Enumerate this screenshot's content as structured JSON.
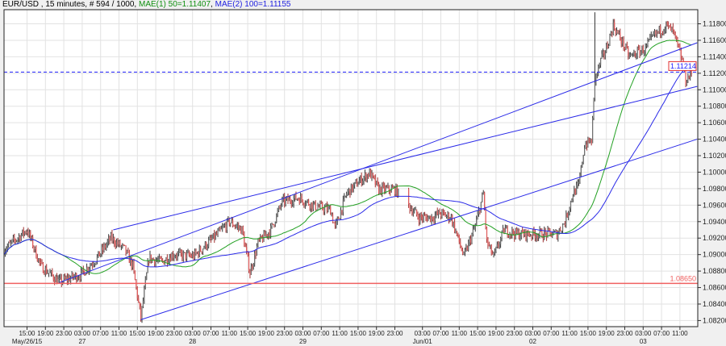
{
  "header": {
    "symbol": "EUR/USD",
    "info": " , 15 minutes, # 594 / 1000,",
    "ma1": "MAE(1) 50=1.11407",
    "ma2": "MAE(2) 100=1.11155"
  },
  "colors": {
    "ma1": "#22a022",
    "ma2": "#2a2ae8",
    "trendline": "#2a2ae8",
    "support": "#f06060",
    "current": "#2020ff",
    "candle_up": "#707070",
    "candle_down": "#e05a5a",
    "grid": "#e2e2e2"
  },
  "chart_data": {
    "type": "candlestick",
    "ylim": [
      1.0815,
      1.1205
    ],
    "y_ticks": [
      "1.11800",
      "1.11600",
      "1.11400",
      "1.11200",
      "1.11000",
      "1.10800",
      "1.10600",
      "1.10400",
      "1.10200",
      "1.10000",
      "1.09800",
      "1.09600",
      "1.09400",
      "1.09200",
      "1.09000",
      "1.08800",
      "1.08600",
      "1.08400",
      "1.08200"
    ],
    "x_ticks": [
      {
        "t": "05/26 15:00",
        "label": "15:00"
      },
      {
        "t": "05/26 19:00",
        "label": "19:00"
      },
      {
        "t": "05/26 23:00",
        "label": "23:00"
      },
      {
        "t": "05/27 03:00",
        "label": "03:00"
      },
      {
        "t": "05/27 07:00",
        "label": "07:00"
      },
      {
        "t": "05/27 11:00",
        "label": "11:00"
      },
      {
        "t": "05/27 15:00",
        "label": "15:00"
      },
      {
        "t": "05/27 19:00",
        "label": "19:00"
      },
      {
        "t": "05/27 23:00",
        "label": "23:00"
      },
      {
        "t": "05/28 03:00",
        "label": "03:00"
      },
      {
        "t": "05/28 07:00",
        "label": "07:00"
      },
      {
        "t": "05/28 11:00",
        "label": "11:00"
      },
      {
        "t": "05/28 15:00",
        "label": "15:00"
      },
      {
        "t": "05/28 19:00",
        "label": "19:00"
      },
      {
        "t": "05/28 23:00",
        "label": "23:00"
      },
      {
        "t": "05/29 03:00",
        "label": "03:00"
      },
      {
        "t": "05/29 07:00",
        "label": "07:00"
      },
      {
        "t": "05/29 11:00",
        "label": "11:00"
      },
      {
        "t": "05/29 15:00",
        "label": "15:00"
      },
      {
        "t": "05/29 19:00",
        "label": "19:00"
      },
      {
        "t": "05/29 23:00",
        "label": "23:00"
      },
      {
        "t": "06/01 03:00",
        "label": "03:00"
      },
      {
        "t": "06/01 07:00",
        "label": "07:00"
      },
      {
        "t": "06/01 11:00",
        "label": "11:00"
      },
      {
        "t": "06/01 15:00",
        "label": "15:00"
      },
      {
        "t": "06/01 19:00",
        "label": "19:00"
      },
      {
        "t": "06/01 23:00",
        "label": "23:00"
      },
      {
        "t": "06/02 03:00",
        "label": "03:00"
      },
      {
        "t": "06/02 07:00",
        "label": "07:00"
      },
      {
        "t": "06/02 11:00",
        "label": "11:00"
      },
      {
        "t": "06/02 15:00",
        "label": "15:00"
      },
      {
        "t": "06/02 19:00",
        "label": "19:00"
      },
      {
        "t": "06/02 23:00",
        "label": "23:00"
      },
      {
        "t": "06/03 03:00",
        "label": "03:00"
      },
      {
        "t": "06/03 07:00",
        "label": "07:00"
      },
      {
        "t": "06/03 11:00",
        "label": "11:00"
      }
    ],
    "date_labels": [
      {
        "t": "05/26 15:00",
        "label": "May/26/15"
      },
      {
        "t": "05/27 03:00",
        "label": "27"
      },
      {
        "t": "05/28 03:00",
        "label": "28"
      },
      {
        "t": "05/29 03:00",
        "label": "29"
      },
      {
        "t": "06/01 03:00",
        "label": "Jun/01"
      },
      {
        "t": "06/02 03:00",
        "label": "02"
      },
      {
        "t": "06/03 03:00",
        "label": "03"
      }
    ],
    "price_path": [
      [
        "05/26 10:00",
        1.0906
      ],
      [
        "05/26 15:00",
        1.093
      ],
      [
        "05/26 16:00",
        1.0916
      ],
      [
        "05/26 18:00",
        1.0886
      ],
      [
        "05/26 22:00",
        1.0867
      ],
      [
        "05/27 02:45",
        1.0876
      ],
      [
        "05/27 06:15",
        1.0896
      ],
      [
        "05/27 09:15",
        1.092
      ],
      [
        "05/27 12:15",
        1.0906
      ],
      [
        "05/27 14:00",
        1.0886
      ],
      [
        "05/27 15:45",
        1.0823
      ],
      [
        "05/27 17:30",
        1.0896
      ],
      [
        "05/27 20:15",
        1.0891
      ],
      [
        "05/27 22:45",
        1.09
      ],
      [
        "05/28 03:15",
        1.0898
      ],
      [
        "05/28 08:30",
        1.0925
      ],
      [
        "05/28 11:00",
        1.094
      ],
      [
        "05/28 13:45",
        1.093
      ],
      [
        "05/28 15:30",
        1.0878
      ],
      [
        "05/28 17:15",
        1.0914
      ],
      [
        "05/28 20:00",
        1.093
      ],
      [
        "05/28 22:30",
        1.0964
      ],
      [
        "05/29 02:00",
        1.0969
      ],
      [
        "05/29 05:30",
        1.0959
      ],
      [
        "05/29 09:00",
        1.0954
      ],
      [
        "05/29 10:00",
        1.0932
      ],
      [
        "05/29 12:30",
        1.0974
      ],
      [
        "05/29 15:15",
        1.0989
      ],
      [
        "05/29 17:30",
        1.0999
      ],
      [
        "05/29 19:30",
        1.0979
      ],
      [
        "05/29 23:00",
        1.0979
      ],
      [
        "06/01 02:15",
        1.0945
      ],
      [
        "06/01 05:00",
        1.0945
      ],
      [
        "06/01 06:45",
        1.095
      ],
      [
        "06/01 09:15",
        1.0945
      ],
      [
        "06/01 11:00",
        1.0915
      ],
      [
        "06/01 12:00",
        1.0897
      ],
      [
        "06/01 14:30",
        1.0935
      ],
      [
        "06/01 16:15",
        1.0974
      ],
      [
        "06/01 17:00",
        1.0915
      ],
      [
        "06/01 18:30",
        1.0897
      ],
      [
        "06/01 20:45",
        1.093
      ],
      [
        "06/01 23:30",
        1.0925
      ],
      [
        "06/02 03:00",
        1.0925
      ],
      [
        "06/02 08:15",
        1.0925
      ],
      [
        "06/02 10:00",
        1.094
      ],
      [
        "06/02 11:45",
        1.0974
      ],
      [
        "06/02 13:00",
        1.0984
      ],
      [
        "06/02 14:15",
        1.1033
      ],
      [
        "06/02 15:45",
        1.1038
      ],
      [
        "06/02 16:30",
        1.1111
      ],
      [
        "06/02 17:45",
        1.1135
      ],
      [
        "06/02 19:00",
        1.115
      ],
      [
        "06/02 20:30",
        1.1178
      ],
      [
        "06/02 22:15",
        1.116
      ],
      [
        "06/03 00:00",
        1.114
      ],
      [
        "06/03 03:30",
        1.115
      ],
      [
        "06/03 05:15",
        1.1165
      ],
      [
        "06/03 08:00",
        1.1178
      ],
      [
        "06/03 09:30",
        1.117
      ],
      [
        "06/03 11:30",
        1.1135
      ],
      [
        "06/03 12:15",
        1.1111
      ],
      [
        "06/03 13:30",
        1.1121
      ]
    ],
    "indicators": [
      {
        "name": "MAE(1) 50",
        "period": 50,
        "value": 1.11407
      },
      {
        "name": "MAE(2) 100",
        "period": 100,
        "value": 1.11155
      }
    ],
    "trendlines": [
      [
        [
          "05/26 22:00",
          1.0866
        ],
        [
          "06/03 14:45",
          1.1157
        ]
      ],
      [
        [
          "05/27 09:45",
          1.093
        ],
        [
          "06/03 14:45",
          1.1104
        ]
      ],
      [
        [
          "05/27 15:45",
          1.0821
        ],
        [
          "06/03 14:45",
          1.104
        ]
      ]
    ],
    "support_level": "1.08650",
    "current_price": "1.11214",
    "grid": true
  }
}
